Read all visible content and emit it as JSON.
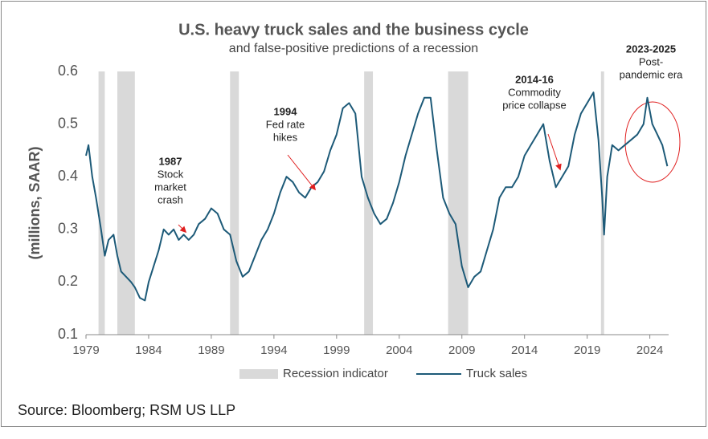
{
  "chart_data": {
    "type": "line",
    "title": "U.S. heavy truck sales and the business cycle",
    "subtitle": "and false-positive predictions of a recession",
    "y_label": "(millions, SAAR)",
    "source": "Source: Bloomberg; RSM US LLP",
    "xlim": [
      1979,
      2025.5
    ],
    "xticks": [
      1979,
      1984,
      1989,
      1994,
      1999,
      2004,
      2009,
      2014,
      2019,
      2024
    ],
    "ylim": [
      0.1,
      0.6
    ],
    "yticks": [
      0.1,
      0.2,
      0.3,
      0.4,
      0.5,
      0.6
    ],
    "recession_name": "Recession indicator",
    "recession_color": "#d9d9d9",
    "recessions": [
      [
        1980.0,
        1980.5
      ],
      [
        1981.5,
        1982.9
      ],
      [
        1990.5,
        1991.2
      ],
      [
        2001.2,
        2001.9
      ],
      [
        2007.9,
        2009.5
      ],
      [
        2020.1,
        2020.35
      ]
    ],
    "x": [
      1979.0,
      1979.2,
      1979.5,
      1979.8,
      1980.2,
      1980.5,
      1980.8,
      1981.2,
      1981.5,
      1981.8,
      1982.2,
      1982.6,
      1982.9,
      1983.3,
      1983.7,
      1984.0,
      1984.4,
      1984.8,
      1985.2,
      1985.6,
      1986.0,
      1986.4,
      1986.8,
      1987.2,
      1987.6,
      1988.0,
      1988.5,
      1989.0,
      1989.5,
      1990.0,
      1990.5,
      1991.0,
      1991.5,
      1992.0,
      1992.5,
      1993.0,
      1993.5,
      1994.0,
      1994.5,
      1995.0,
      1995.5,
      1996.0,
      1996.5,
      1997.0,
      1997.5,
      1998.0,
      1998.5,
      1999.0,
      1999.5,
      2000.0,
      2000.5,
      2001.0,
      2001.5,
      2002.0,
      2002.5,
      2003.0,
      2003.5,
      2004.0,
      2004.5,
      2005.0,
      2005.5,
      2006.0,
      2006.5,
      2007.0,
      2007.5,
      2008.0,
      2008.5,
      2009.0,
      2009.5,
      2010.0,
      2010.5,
      2011.0,
      2011.5,
      2012.0,
      2012.5,
      2013.0,
      2013.5,
      2014.0,
      2014.5,
      2015.0,
      2015.5,
      2016.0,
      2016.5,
      2017.0,
      2017.5,
      2018.0,
      2018.5,
      2019.0,
      2019.5,
      2019.9,
      2020.2,
      2020.35,
      2020.6,
      2021.0,
      2021.5,
      2022.0,
      2022.5,
      2023.0,
      2023.5,
      2023.8,
      2024.2,
      2024.6,
      2025.0,
      2025.4
    ],
    "series": [
      {
        "name": "Truck sales",
        "color": "#1d5a78",
        "values": [
          0.44,
          0.46,
          0.4,
          0.36,
          0.3,
          0.25,
          0.28,
          0.29,
          0.25,
          0.22,
          0.21,
          0.2,
          0.19,
          0.17,
          0.165,
          0.2,
          0.23,
          0.26,
          0.3,
          0.29,
          0.3,
          0.28,
          0.29,
          0.28,
          0.29,
          0.31,
          0.32,
          0.34,
          0.33,
          0.3,
          0.29,
          0.24,
          0.21,
          0.22,
          0.25,
          0.28,
          0.3,
          0.33,
          0.37,
          0.4,
          0.39,
          0.37,
          0.36,
          0.38,
          0.39,
          0.41,
          0.45,
          0.48,
          0.53,
          0.54,
          0.52,
          0.4,
          0.36,
          0.33,
          0.31,
          0.32,
          0.35,
          0.39,
          0.44,
          0.48,
          0.52,
          0.55,
          0.55,
          0.45,
          0.36,
          0.33,
          0.31,
          0.23,
          0.19,
          0.21,
          0.22,
          0.26,
          0.3,
          0.36,
          0.38,
          0.38,
          0.4,
          0.44,
          0.46,
          0.48,
          0.5,
          0.43,
          0.38,
          0.4,
          0.42,
          0.48,
          0.52,
          0.54,
          0.56,
          0.47,
          0.36,
          0.29,
          0.4,
          0.46,
          0.45,
          0.46,
          0.47,
          0.48,
          0.5,
          0.55,
          0.5,
          0.48,
          0.46,
          0.42
        ]
      }
    ],
    "annotations": [
      {
        "title": "1987",
        "lines": [
          "Stock",
          "market",
          "crash"
        ]
      },
      {
        "title": "1994",
        "lines": [
          "Fed rate",
          "hikes"
        ]
      },
      {
        "title": "2014-16",
        "lines": [
          "Commodity",
          "price collapse"
        ]
      },
      {
        "title": "2023-2025",
        "lines": [
          "Post-",
          "pandemic era"
        ]
      }
    ]
  }
}
